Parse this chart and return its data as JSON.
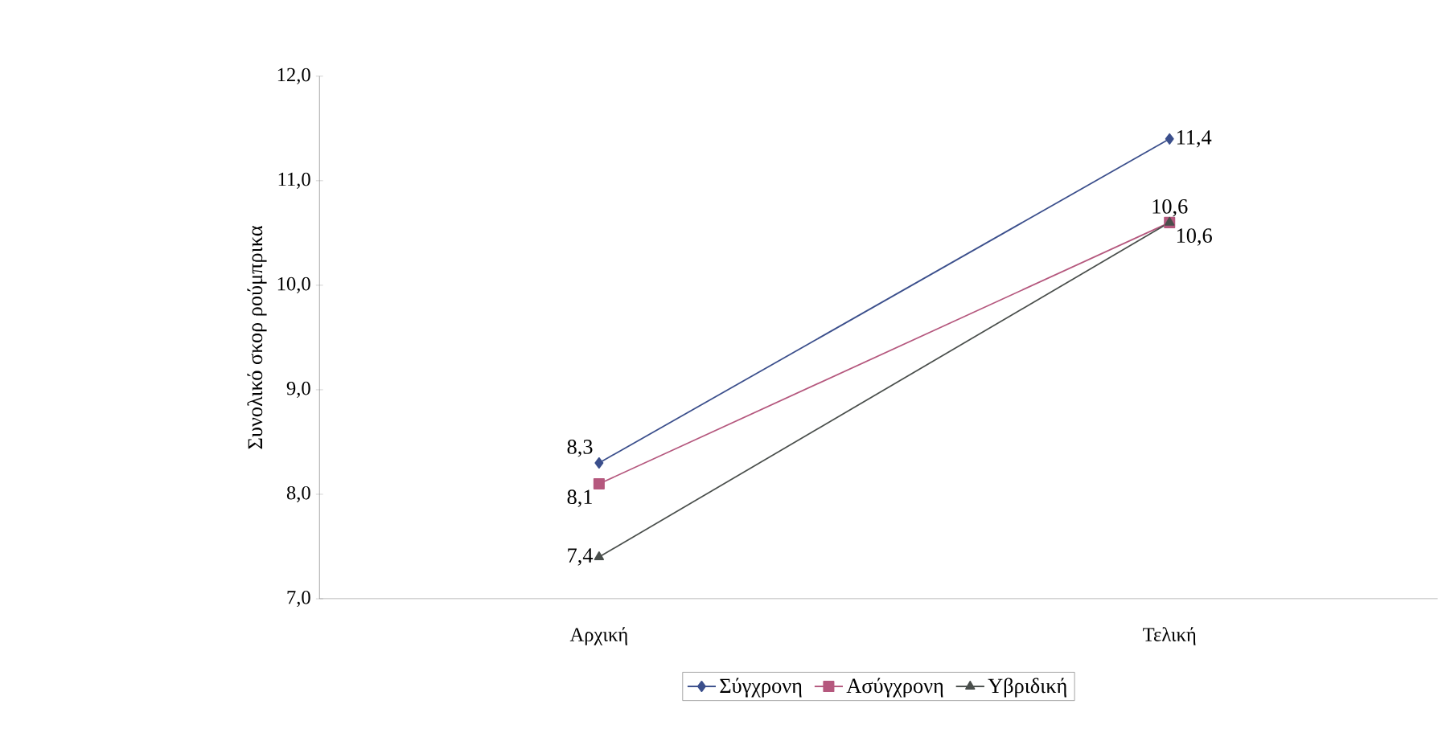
{
  "chart_data": {
    "type": "line",
    "ylabel": "Συνολικό σκορ ρούμπρικα",
    "categories": [
      "Αρχική",
      "Τελική"
    ],
    "series": [
      {
        "name": "Σύγχρονη",
        "color": "#3b4f8c",
        "marker": "diamond",
        "values": [
          8.3,
          11.4
        ],
        "value_labels": [
          "8,3",
          "11,4"
        ]
      },
      {
        "name": "Ασύγχρονη",
        "color": "#b5587e",
        "marker": "square",
        "values": [
          8.1,
          10.6
        ],
        "value_labels": [
          "8,1",
          "10,6"
        ]
      },
      {
        "name": "Υβριδική",
        "color": "#4a4f4c",
        "marker": "triangle",
        "values": [
          7.4,
          10.6
        ],
        "value_labels": [
          "7,4",
          "10,6"
        ]
      }
    ],
    "ylim": [
      7,
      12
    ],
    "yticks": [
      {
        "value": 7,
        "label": "7,0"
      },
      {
        "value": 8,
        "label": "8,0"
      },
      {
        "value": 9,
        "label": "9,0"
      },
      {
        "value": 10,
        "label": "10,0"
      },
      {
        "value": 11,
        "label": "11,0"
      },
      {
        "value": 12,
        "label": "12,0"
      }
    ],
    "legend": "bottom",
    "grid": false
  }
}
